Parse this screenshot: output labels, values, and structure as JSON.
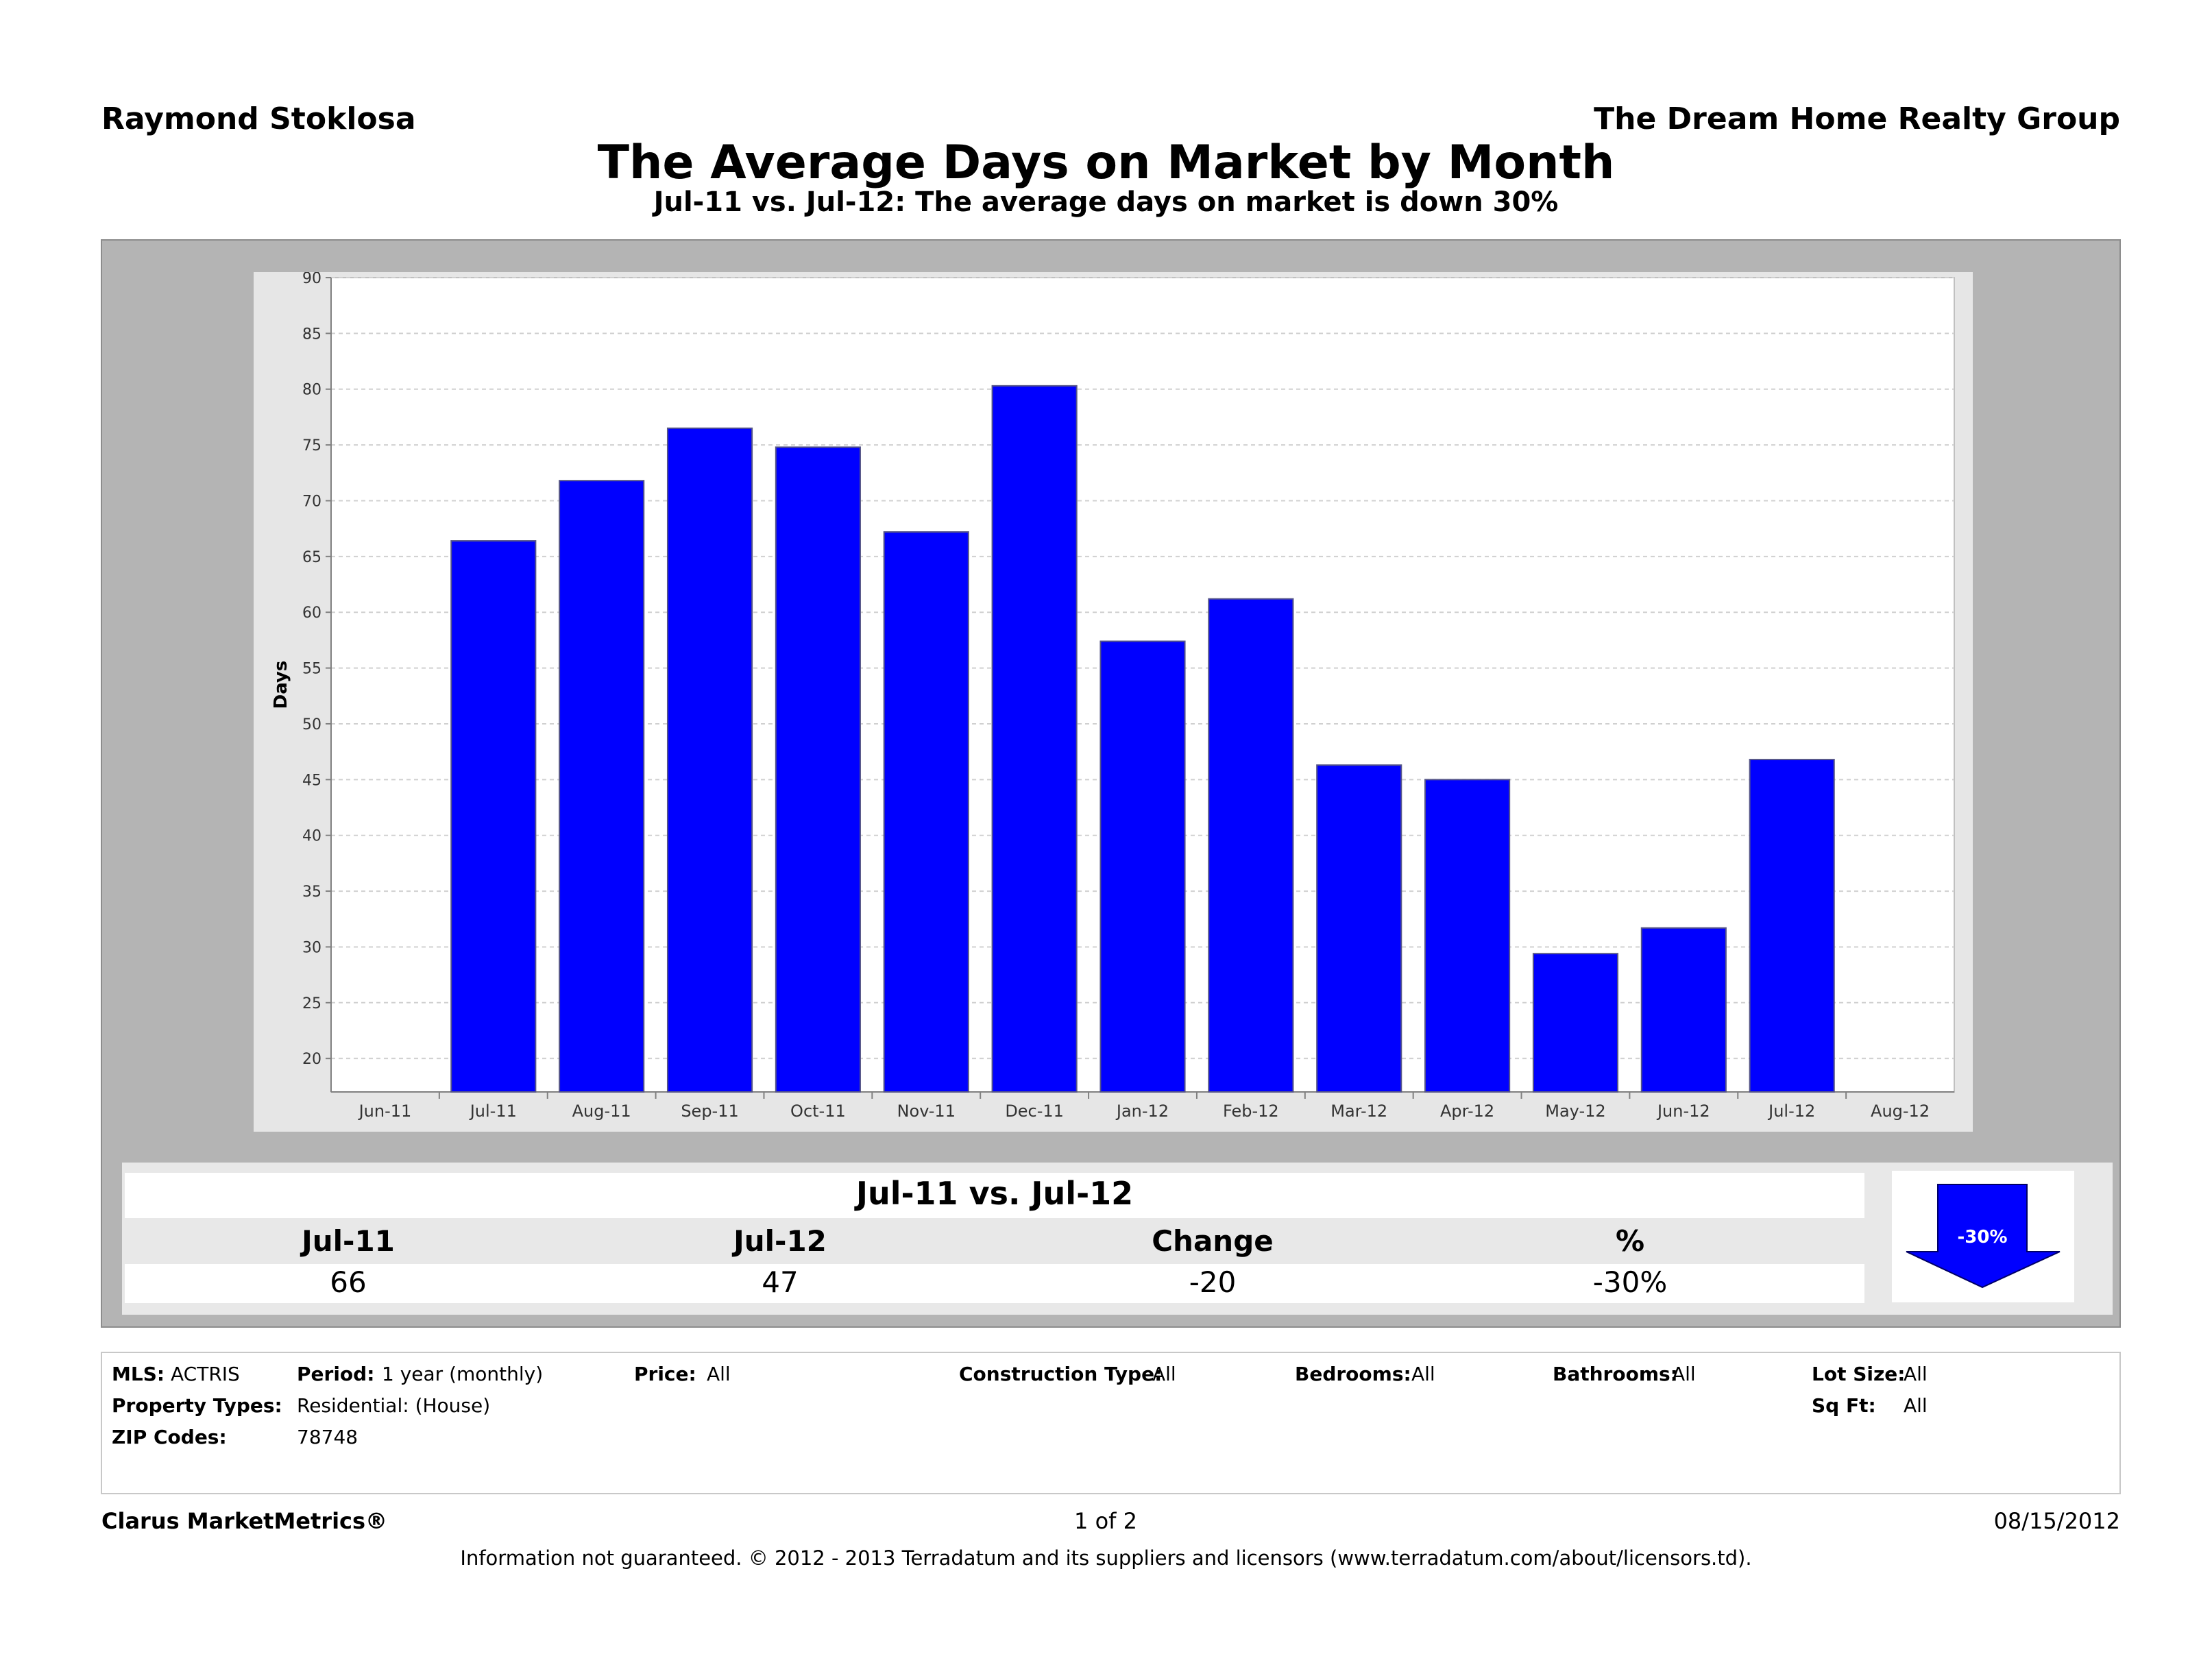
{
  "header": {
    "agent": "Raymond Stoklosa",
    "company": "The Dream Home Realty Group",
    "title": "The Average Days on Market by Month",
    "subtitle": "Jul-11 vs. Jul-12:  The average days on market is down 30%"
  },
  "chart_data": {
    "type": "bar",
    "ylabel": "Days",
    "ylim": [
      17,
      90
    ],
    "yticks": [
      20,
      25,
      30,
      35,
      40,
      45,
      50,
      55,
      60,
      65,
      70,
      75,
      80,
      85,
      90
    ],
    "x_ticks": [
      "Jun-11",
      "Jul-11",
      "Aug-11",
      "Sep-11",
      "Oct-11",
      "Nov-11",
      "Dec-11",
      "Jan-12",
      "Feb-12",
      "Mar-12",
      "Apr-12",
      "May-12",
      "Jun-12",
      "Jul-12",
      "Aug-12"
    ],
    "categories": [
      "Jul-11",
      "Aug-11",
      "Sep-11",
      "Oct-11",
      "Nov-11",
      "Dec-11",
      "Jan-12",
      "Feb-12",
      "Mar-12",
      "Apr-12",
      "May-12",
      "Jun-12",
      "Jul-12"
    ],
    "values": [
      66.4,
      71.8,
      76.5,
      74.8,
      67.2,
      80.3,
      57.4,
      61.2,
      46.3,
      45.0,
      29.4,
      31.7,
      46.8
    ],
    "bar_color": "#0000ff",
    "grid": true
  },
  "summary": {
    "title": "Jul-11 vs. Jul-12",
    "headers": [
      "Jul-11",
      "Jul-12",
      "Change",
      "%"
    ],
    "values": [
      "66",
      "47",
      "-20",
      "-30%"
    ],
    "arrow_label": "-30%",
    "arrow_color": "#0000ff"
  },
  "info": {
    "mls_label": "MLS:",
    "mls": "ACTRIS",
    "period_label": "Period:",
    "period": "1 year (monthly)",
    "price_label": "Price:",
    "price": "All",
    "construction_label": "Construction Type:",
    "construction": "All",
    "bedrooms_label": "Bedrooms:",
    "bedrooms": "All",
    "bathrooms_label": "Bathrooms:",
    "bathrooms": "All",
    "lotsize_label": "Lot Size:",
    "lotsize": "All",
    "proptypes_label": "Property Types:",
    "proptypes": "Residential: (House)",
    "sqft_label": "Sq Ft:",
    "sqft": "All",
    "zip_label": "ZIP Codes:",
    "zip": "78748"
  },
  "footer": {
    "brand": "Clarus MarketMetrics®",
    "page": "1 of 2",
    "date": "08/15/2012",
    "disclaimer": "Information not guaranteed.  © 2012 - 2013 Terradatum and its suppliers and licensors (www.terradatum.com/about/licensors.td)."
  }
}
